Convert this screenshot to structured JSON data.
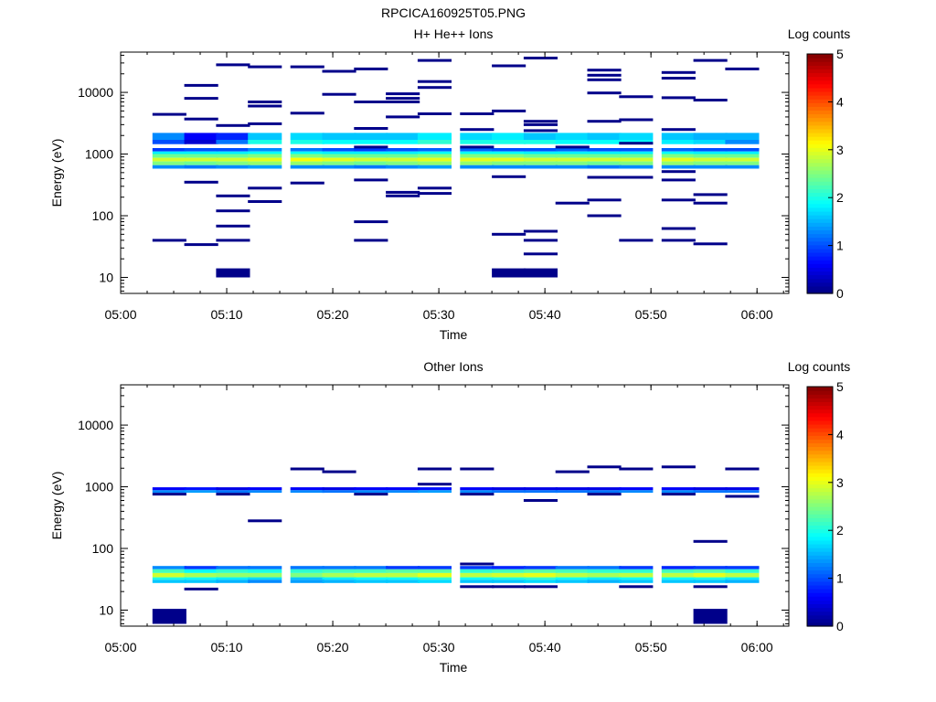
{
  "figure": {
    "title": "RPCICA160925T05.PNG"
  },
  "chart_data": [
    {
      "type": "heatmap",
      "title": "H+ He++ Ions",
      "xlabel": "Time",
      "ylabel": "Energy (eV)",
      "xlim": [
        "05:00",
        "06:03"
      ],
      "ylim": [
        5.5,
        45000
      ],
      "yscale": "log",
      "xticks": [
        "05:00",
        "05:10",
        "05:20",
        "05:30",
        "05:40",
        "05:50",
        "06:00"
      ],
      "yticks": [
        "10",
        "100",
        "1000",
        "10000"
      ],
      "colorbar": {
        "label": "Log counts",
        "range": [
          0,
          5
        ],
        "ticks": [
          "0",
          "1",
          "2",
          "3",
          "4",
          "5"
        ]
      },
      "columns_start": [
        "05:03",
        "05:06",
        "05:09",
        "05:12",
        "05:16",
        "05:19",
        "05:22",
        "05:25",
        "05:28",
        "05:32",
        "05:35",
        "05:38",
        "05:41",
        "05:44",
        "05:47",
        "05:51",
        "05:54",
        "05:57"
      ],
      "column_width_min": 3.2,
      "bands": [
        {
          "e_low": 1700,
          "e_high": 2200,
          "values": [
            1.3,
            0.6,
            0.8,
            1.6,
            1.7,
            1.6,
            1.6,
            1.6,
            1.8,
            1.7,
            1.8,
            1.6,
            1.7,
            1.6,
            1.7,
            1.6,
            1.5,
            1.5
          ]
        },
        {
          "e_low": 1450,
          "e_high": 1700,
          "values": [
            1.0,
            0.4,
            1.2,
            2.0,
            2.0,
            1.9,
            1.9,
            1.9,
            2.1,
            2.0,
            2.0,
            2.0,
            1.9,
            1.9,
            1.9,
            1.8,
            1.7,
            1.3
          ]
        },
        {
          "e_low": 1100,
          "e_high": 1250,
          "values": [
            0.9,
            1.0,
            1.0,
            1.3,
            1.2,
            1.0,
            0.9,
            1.0,
            1.1,
            1.1,
            1.0,
            1.0,
            1.1,
            1.0,
            1.0,
            1.1,
            1.0,
            1.0
          ]
        },
        {
          "e_low": 1000,
          "e_high": 1100,
          "values": [
            1.8,
            1.8,
            1.8,
            1.9,
            1.9,
            1.8,
            1.8,
            1.8,
            1.9,
            1.9,
            1.9,
            1.8,
            1.8,
            1.8,
            1.8,
            1.9,
            1.8,
            1.8
          ]
        },
        {
          "e_low": 870,
          "e_high": 1000,
          "values": [
            2.4,
            2.4,
            2.4,
            2.5,
            2.5,
            2.4,
            2.4,
            2.4,
            2.5,
            2.5,
            2.5,
            2.4,
            2.4,
            2.4,
            2.4,
            2.5,
            2.4,
            2.4
          ]
        },
        {
          "e_low": 760,
          "e_high": 870,
          "values": [
            2.9,
            2.9,
            2.9,
            3.0,
            3.1,
            3.0,
            2.9,
            2.9,
            3.0,
            3.0,
            3.0,
            2.9,
            2.9,
            2.9,
            2.9,
            3.0,
            2.9,
            2.9
          ]
        },
        {
          "e_low": 660,
          "e_high": 760,
          "values": [
            2.5,
            2.4,
            2.5,
            2.6,
            2.6,
            2.5,
            2.4,
            2.5,
            2.6,
            2.6,
            2.5,
            2.5,
            2.5,
            2.4,
            2.5,
            2.6,
            2.5,
            2.5
          ]
        },
        {
          "e_low": 580,
          "e_high": 660,
          "values": [
            1.3,
            1.2,
            1.3,
            1.4,
            1.3,
            1.3,
            1.2,
            1.3,
            1.4,
            1.3,
            1.3,
            1.3,
            1.3,
            1.2,
            1.3,
            1.3,
            1.3,
            1.3
          ]
        }
      ],
      "cells": [
        {
          "t": "05:03",
          "e": 4400
        },
        {
          "t": "05:03",
          "e": 40
        },
        {
          "t": "05:06",
          "e": 13000
        },
        {
          "t": "05:06",
          "e": 8000
        },
        {
          "t": "05:06",
          "e": 3700
        },
        {
          "t": "05:06",
          "e": 350
        },
        {
          "t": "05:06",
          "e": 34
        },
        {
          "t": "05:09",
          "e": 28000
        },
        {
          "t": "05:09",
          "e": 2900
        },
        {
          "t": "05:09",
          "e": 210
        },
        {
          "t": "05:09",
          "e": 120
        },
        {
          "t": "05:09",
          "e": 68
        },
        {
          "t": "05:09",
          "e": 40
        },
        {
          "t": "05:09",
          "e_low": 10,
          "e_high": 14
        },
        {
          "t": "05:12",
          "e": 26000
        },
        {
          "t": "05:12",
          "e": 7000
        },
        {
          "t": "05:12",
          "e": 6000
        },
        {
          "t": "05:12",
          "e": 3100
        },
        {
          "t": "05:12",
          "e": 280
        },
        {
          "t": "05:12",
          "e": 170
        },
        {
          "t": "05:16",
          "e": 26000
        },
        {
          "t": "05:16",
          "e": 4600
        },
        {
          "t": "05:16",
          "e": 340
        },
        {
          "t": "05:19",
          "e": 22000
        },
        {
          "t": "05:19",
          "e": 9300
        },
        {
          "t": "05:22",
          "e": 24000
        },
        {
          "t": "05:22",
          "e": 7000
        },
        {
          "t": "05:22",
          "e": 2600
        },
        {
          "t": "05:22",
          "e": 1300
        },
        {
          "t": "05:22",
          "e": 380
        },
        {
          "t": "05:22",
          "e": 80
        },
        {
          "t": "05:22",
          "e": 40
        },
        {
          "t": "05:25",
          "e": 9500
        },
        {
          "t": "05:25",
          "e": 8000
        },
        {
          "t": "05:25",
          "e": 7000
        },
        {
          "t": "05:25",
          "e": 4000
        },
        {
          "t": "05:25",
          "e": 240
        },
        {
          "t": "05:25",
          "e": 210
        },
        {
          "t": "05:28",
          "e": 33000
        },
        {
          "t": "05:28",
          "e": 15000
        },
        {
          "t": "05:28",
          "e": 12000
        },
        {
          "t": "05:28",
          "e": 4500
        },
        {
          "t": "05:28",
          "e": 280
        },
        {
          "t": "05:28",
          "e": 230
        },
        {
          "t": "05:32",
          "e": 4500
        },
        {
          "t": "05:32",
          "e": 2500
        },
        {
          "t": "05:32",
          "e": 1300
        },
        {
          "t": "05:35",
          "e": 27000
        },
        {
          "t": "05:35",
          "e": 5000
        },
        {
          "t": "05:35",
          "e": 430
        },
        {
          "t": "05:35",
          "e": 50
        },
        {
          "t": "05:35",
          "e_low": 10,
          "e_high": 14
        },
        {
          "t": "05:38",
          "e": 36000
        },
        {
          "t": "05:38",
          "e": 3400
        },
        {
          "t": "05:38",
          "e": 3000
        },
        {
          "t": "05:38",
          "e": 2400
        },
        {
          "t": "05:38",
          "e": 56
        },
        {
          "t": "05:38",
          "e": 40
        },
        {
          "t": "05:38",
          "e": 24
        },
        {
          "t": "05:38",
          "e_low": 10,
          "e_high": 14
        },
        {
          "t": "05:41",
          "e": 1300
        },
        {
          "t": "05:41",
          "e": 160
        },
        {
          "t": "05:44",
          "e": 23000
        },
        {
          "t": "05:44",
          "e": 19000
        },
        {
          "t": "05:44",
          "e": 16000
        },
        {
          "t": "05:44",
          "e": 9800
        },
        {
          "t": "05:44",
          "e": 3400
        },
        {
          "t": "05:44",
          "e": 420
        },
        {
          "t": "05:44",
          "e": 180
        },
        {
          "t": "05:44",
          "e": 100
        },
        {
          "t": "05:47",
          "e": 8500
        },
        {
          "t": "05:47",
          "e": 3600
        },
        {
          "t": "05:47",
          "e": 1500
        },
        {
          "t": "05:47",
          "e": 420
        },
        {
          "t": "05:47",
          "e": 40
        },
        {
          "t": "05:51",
          "e": 21000
        },
        {
          "t": "05:51",
          "e": 17000
        },
        {
          "t": "05:51",
          "e": 8200
        },
        {
          "t": "05:51",
          "e": 2500
        },
        {
          "t": "05:51",
          "e": 520
        },
        {
          "t": "05:51",
          "e": 380
        },
        {
          "t": "05:51",
          "e": 180
        },
        {
          "t": "05:51",
          "e": 62
        },
        {
          "t": "05:51",
          "e": 40
        },
        {
          "t": "05:54",
          "e": 33000
        },
        {
          "t": "05:54",
          "e": 7500
        },
        {
          "t": "05:54",
          "e": 220
        },
        {
          "t": "05:54",
          "e": 160
        },
        {
          "t": "05:54",
          "e": 35
        },
        {
          "t": "05:57",
          "e": 24000
        }
      ]
    },
    {
      "type": "heatmap",
      "title": "Other Ions",
      "xlabel": "Time",
      "ylabel": "Energy (eV)",
      "xlim": [
        "05:00",
        "06:03"
      ],
      "ylim": [
        5.5,
        45000
      ],
      "yscale": "log",
      "xticks": [
        "05:00",
        "05:10",
        "05:20",
        "05:30",
        "05:40",
        "05:50",
        "06:00"
      ],
      "yticks": [
        "10",
        "100",
        "1000",
        "10000"
      ],
      "colorbar": {
        "label": "Log counts",
        "range": [
          0,
          5
        ],
        "ticks": [
          "0",
          "1",
          "2",
          "3",
          "4",
          "5"
        ]
      },
      "columns_start": [
        "05:03",
        "05:06",
        "05:09",
        "05:12",
        "05:16",
        "05:19",
        "05:22",
        "05:25",
        "05:28",
        "05:32",
        "05:35",
        "05:38",
        "05:41",
        "05:44",
        "05:47",
        "05:51",
        "05:54",
        "05:57"
      ],
      "column_width_min": 3.2,
      "bands": [
        {
          "e_low": 880,
          "e_high": 980,
          "values": [
            0.6,
            0.7,
            0.5,
            0.6,
            0.6,
            0.5,
            0.6,
            0.6,
            0.7,
            0.6,
            0.5,
            0.5,
            0.5,
            0.5,
            0.6,
            0.6,
            0.5,
            0.5
          ]
        },
        {
          "e_low": 800,
          "e_high": 880,
          "values": [
            1.3,
            1.4,
            1.2,
            1.3,
            1.3,
            1.2,
            1.3,
            1.3,
            1.4,
            1.3,
            1.2,
            1.2,
            1.2,
            1.2,
            1.3,
            1.3,
            1.2,
            1.2
          ]
        },
        {
          "e_low": 46,
          "e_high": 52,
          "values": [
            1.3,
            0.9,
            1.2,
            1.2,
            1.2,
            1.2,
            1.2,
            0.9,
            0.9,
            0.9,
            0.8,
            0.9,
            1.2,
            1.2,
            0.9,
            0.8,
            0.9,
            0.9
          ]
        },
        {
          "e_low": 40,
          "e_high": 46,
          "values": [
            2.2,
            1.9,
            2.1,
            2.0,
            2.1,
            2.2,
            2.2,
            2.3,
            2.3,
            2.1,
            2.2,
            2.3,
            2.2,
            2.1,
            2.1,
            2.2,
            2.3,
            2.1
          ]
        },
        {
          "e_low": 34,
          "e_high": 40,
          "values": [
            2.9,
            2.7,
            2.6,
            2.6,
            2.5,
            2.7,
            2.8,
            2.8,
            3.0,
            2.8,
            2.9,
            3.0,
            2.8,
            2.7,
            2.8,
            2.8,
            3.0,
            2.8
          ]
        },
        {
          "e_low": 31,
          "e_high": 34,
          "values": [
            2.0,
            1.9,
            1.8,
            1.7,
            1.6,
            1.8,
            1.9,
            1.9,
            2.1,
            1.9,
            2.0,
            2.1,
            1.9,
            1.8,
            1.9,
            1.9,
            2.0,
            1.8
          ]
        },
        {
          "e_low": 27.5,
          "e_high": 31,
          "values": [
            1.6,
            1.6,
            1.5,
            1.3,
            1.4,
            1.5,
            1.6,
            1.6,
            1.7,
            1.6,
            1.6,
            1.7,
            1.6,
            1.5,
            1.6,
            1.6,
            1.6,
            1.5
          ]
        }
      ],
      "cells": [
        {
          "t": "05:03",
          "e": 760
        },
        {
          "t": "05:03",
          "e_low": 6,
          "e_high": 10.5
        },
        {
          "t": "05:06",
          "e": 22
        },
        {
          "t": "05:09",
          "e": 760
        },
        {
          "t": "05:12",
          "e": 280
        },
        {
          "t": "05:16",
          "e": 1950
        },
        {
          "t": "05:19",
          "e": 1750
        },
        {
          "t": "05:22",
          "e": 760
        },
        {
          "t": "05:28",
          "e": 1950
        },
        {
          "t": "05:28",
          "e": 1100
        },
        {
          "t": "05:32",
          "e": 1950
        },
        {
          "t": "05:32",
          "e": 760
        },
        {
          "t": "05:32",
          "e": 56
        },
        {
          "t": "05:32",
          "e": 24
        },
        {
          "t": "05:35",
          "e": 24
        },
        {
          "t": "05:38",
          "e": 600
        },
        {
          "t": "05:38",
          "e": 24
        },
        {
          "t": "05:41",
          "e": 1750
        },
        {
          "t": "05:44",
          "e": 2100
        },
        {
          "t": "05:44",
          "e": 760
        },
        {
          "t": "05:47",
          "e": 1950
        },
        {
          "t": "05:47",
          "e": 24
        },
        {
          "t": "05:51",
          "e": 2100
        },
        {
          "t": "05:51",
          "e": 760
        },
        {
          "t": "05:54",
          "e": 130
        },
        {
          "t": "05:54",
          "e": 24
        },
        {
          "t": "05:54",
          "e_low": 6,
          "e_high": 10.5
        },
        {
          "t": "05:57",
          "e": 1950
        },
        {
          "t": "05:57",
          "e": 700
        }
      ]
    }
  ]
}
